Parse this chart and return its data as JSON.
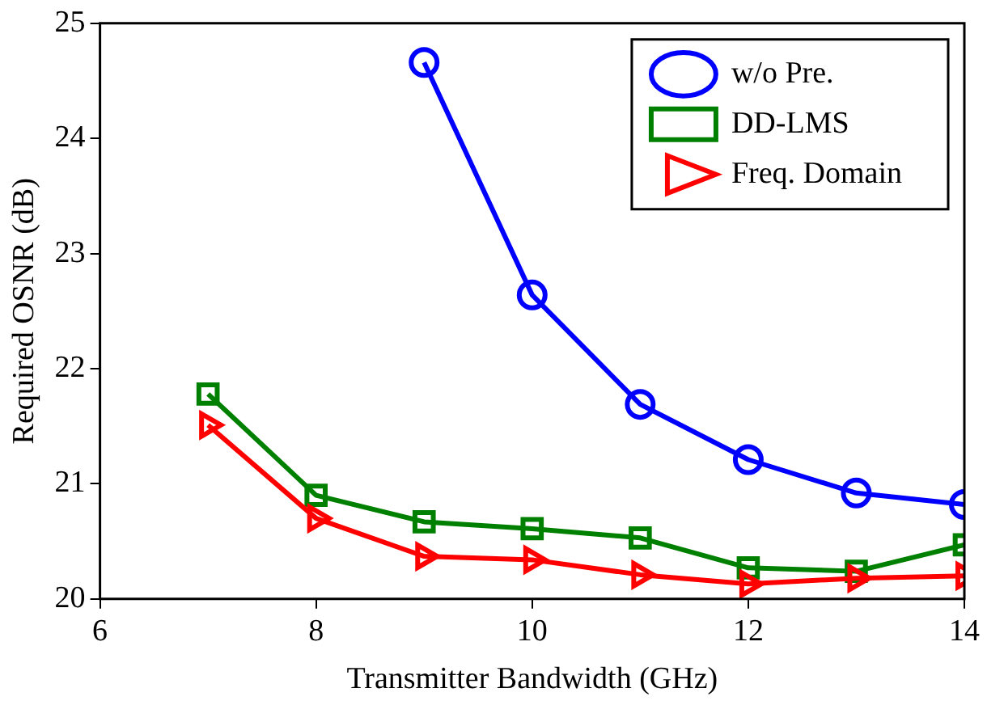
{
  "chart_data": {
    "type": "line",
    "xlabel": "Transmitter Bandwidth (GHz)",
    "ylabel": "Required OSNR (dB)",
    "xlim": [
      6,
      14
    ],
    "xticks": [
      6,
      8,
      10,
      12,
      14
    ],
    "ylim": [
      20,
      25
    ],
    "yticks": [
      20,
      21,
      22,
      23,
      24,
      25
    ],
    "grid": false,
    "legend": "top right",
    "series": [
      {
        "name": "w/o Pre.",
        "color": "#0000ff",
        "marker": "circle",
        "x": [
          9,
          10,
          11,
          12,
          13,
          14
        ],
        "values": [
          24.66,
          22.64,
          21.69,
          21.21,
          20.92,
          20.82
        ]
      },
      {
        "name": "DD-LMS",
        "color": "#008000",
        "marker": "square",
        "x": [
          7,
          8,
          9,
          10,
          11,
          12,
          13,
          14
        ],
        "values": [
          21.78,
          20.9,
          20.67,
          20.61,
          20.53,
          20.27,
          20.24,
          20.47
        ]
      },
      {
        "name": "Freq. Domain",
        "color": "#ff0000",
        "marker": "triangle",
        "x": [
          7,
          8,
          9,
          10,
          11,
          12,
          13,
          14
        ],
        "values": [
          21.51,
          20.7,
          20.37,
          20.34,
          20.21,
          20.13,
          20.18,
          20.2
        ]
      }
    ]
  }
}
